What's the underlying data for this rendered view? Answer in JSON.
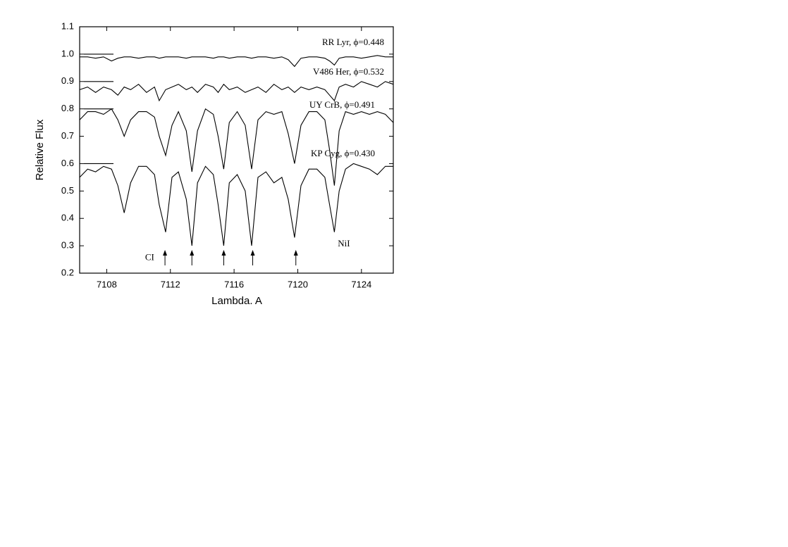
{
  "chart_data": {
    "type": "line",
    "xlabel": "Lambda. A",
    "ylabel": "Relative Flux",
    "xlim": [
      7106.3,
      7126
    ],
    "ylim": [
      0.2,
      1.1
    ],
    "xticks": [
      7108,
      7112,
      7116,
      7120,
      7124
    ],
    "yticks": [
      0.2,
      0.3,
      0.4,
      0.5,
      0.6,
      0.7,
      0.8,
      0.9,
      {
        "value": 1.0,
        "label": "1.0"
      },
      1.1
    ],
    "x": [
      7106.3,
      7106.8,
      7107.3,
      7107.8,
      7108.3,
      7108.7,
      7109.1,
      7109.5,
      7110.0,
      7110.5,
      7111.0,
      7111.3,
      7111.7,
      7112.1,
      7112.5,
      7113.0,
      7113.35,
      7113.7,
      7114.2,
      7114.7,
      7115.0,
      7115.35,
      7115.7,
      7116.2,
      7116.7,
      7117.1,
      7117.5,
      7118.0,
      7118.5,
      7119.0,
      7119.4,
      7119.8,
      7120.2,
      7120.7,
      7121.2,
      7121.7,
      7122.0,
      7122.3,
      7122.6,
      7123.0,
      7123.5,
      7124.0,
      7124.5,
      7125.0,
      7125.5,
      7126.0
    ],
    "series": [
      {
        "name": "RR Lyr,  ϕ=0.448",
        "color": "#000000",
        "level": 1.0,
        "values": [
          0.99,
          0.99,
          0.985,
          0.99,
          0.975,
          0.985,
          0.99,
          0.99,
          0.985,
          0.99,
          0.99,
          0.985,
          0.99,
          0.99,
          0.99,
          0.985,
          0.99,
          0.99,
          0.99,
          0.985,
          0.99,
          0.99,
          0.985,
          0.99,
          0.99,
          0.985,
          0.99,
          0.99,
          0.985,
          0.99,
          0.98,
          0.955,
          0.985,
          0.99,
          0.99,
          0.985,
          0.975,
          0.96,
          0.985,
          0.99,
          0.99,
          0.985,
          0.99,
          0.995,
          0.99,
          0.99
        ]
      },
      {
        "name": "V486 Her,  ϕ=0.532",
        "color": "#000000",
        "level": 0.9,
        "values": [
          0.87,
          0.88,
          0.86,
          0.88,
          0.87,
          0.85,
          0.88,
          0.87,
          0.89,
          0.86,
          0.88,
          0.83,
          0.87,
          0.88,
          0.89,
          0.87,
          0.88,
          0.86,
          0.89,
          0.88,
          0.86,
          0.89,
          0.87,
          0.88,
          0.86,
          0.87,
          0.88,
          0.86,
          0.89,
          0.87,
          0.88,
          0.86,
          0.88,
          0.87,
          0.88,
          0.87,
          0.85,
          0.83,
          0.88,
          0.89,
          0.88,
          0.9,
          0.89,
          0.88,
          0.9,
          0.89
        ]
      },
      {
        "name": "UY CrB,   ϕ=0.491",
        "color": "#000000",
        "level": 0.8,
        "values": [
          0.76,
          0.79,
          0.79,
          0.78,
          0.8,
          0.76,
          0.7,
          0.76,
          0.79,
          0.79,
          0.77,
          0.7,
          0.63,
          0.74,
          0.79,
          0.72,
          0.57,
          0.72,
          0.8,
          0.78,
          0.7,
          0.58,
          0.75,
          0.79,
          0.74,
          0.58,
          0.76,
          0.79,
          0.78,
          0.79,
          0.71,
          0.6,
          0.74,
          0.79,
          0.79,
          0.76,
          0.65,
          0.52,
          0.72,
          0.79,
          0.78,
          0.79,
          0.78,
          0.79,
          0.78,
          0.75
        ]
      },
      {
        "name": "KP Cyg,  ϕ=0.430",
        "color": "#000000",
        "level": 0.6,
        "values": [
          0.55,
          0.58,
          0.57,
          0.59,
          0.58,
          0.52,
          0.42,
          0.53,
          0.59,
          0.59,
          0.56,
          0.45,
          0.35,
          0.55,
          0.57,
          0.47,
          0.3,
          0.53,
          0.59,
          0.56,
          0.45,
          0.3,
          0.53,
          0.56,
          0.5,
          0.3,
          0.55,
          0.57,
          0.53,
          0.55,
          0.47,
          0.33,
          0.52,
          0.58,
          0.58,
          0.55,
          0.45,
          0.35,
          0.5,
          0.58,
          0.6,
          0.59,
          0.58,
          0.56,
          0.59,
          0.59
        ]
      }
    ],
    "arrows": [
      7111.66,
      7113.35,
      7115.35,
      7117.17,
      7119.88
    ],
    "annotations": [
      {
        "text": "CI",
        "x": 7110.7,
        "y": 0.255
      },
      {
        "text": "NiI",
        "x": 7122.9,
        "y": 0.305
      }
    ]
  }
}
